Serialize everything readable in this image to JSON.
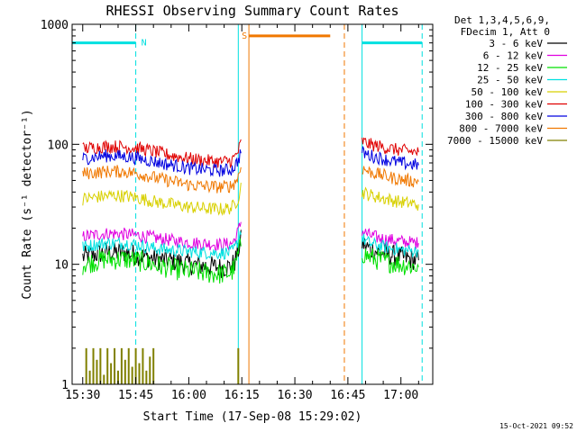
{
  "chart_data": {
    "type": "line",
    "title": "RHESSI Observing Summary Count Rates",
    "xlabel": "Start Time (17-Sep-08 15:29:02)",
    "ylabel": "Count Rate (s⁻¹ detector⁻¹)",
    "y_scale": "log",
    "ylim": [
      1,
      1000
    ],
    "xlim": [
      "15:27",
      "17:09"
    ],
    "x_ticks": [
      "15:30",
      "15:45",
      "16:00",
      "16:15",
      "16:30",
      "16:45",
      "17:00"
    ],
    "y_ticks": [
      "1",
      "10",
      "100",
      "1000"
    ],
    "legend_header": [
      "Det 1,3,4,5,6,9,",
      "FDecim 1, Att 0"
    ],
    "legend_placement": "right",
    "timestamp": "15-Oct-2021 09:52",
    "x_unit": "HH:MM on 17-Sep-08",
    "data_gap": [
      "16:15",
      "16:49"
    ],
    "series": [
      {
        "name": "3 - 6 keV",
        "color": "#000000",
        "x": [
          "15:30",
          "15:33",
          "15:36",
          "15:39",
          "15:42",
          "15:45",
          "15:48",
          "15:51",
          "15:54",
          "15:57",
          "16:00",
          "16:03",
          "16:06",
          "16:09",
          "16:12",
          "16:13",
          "16:14",
          "16:15",
          "16:49",
          "16:51",
          "16:54",
          "16:57",
          "17:00",
          "17:03",
          "17:05"
        ],
        "y": [
          11.5,
          12,
          12.5,
          12.5,
          12.5,
          12,
          11.5,
          11,
          10.8,
          10.5,
          10,
          9.8,
          9.6,
          9.4,
          9.6,
          10.5,
          13,
          17,
          15,
          13.5,
          12.5,
          12,
          11.5,
          11,
          10.8
        ]
      },
      {
        "name": "6 - 12 keV",
        "color": "#e000e0",
        "x": [
          "15:30",
          "15:33",
          "15:36",
          "15:39",
          "15:42",
          "15:45",
          "15:48",
          "15:51",
          "15:54",
          "15:57",
          "16:00",
          "16:03",
          "16:06",
          "16:09",
          "16:12",
          "16:13",
          "16:14",
          "16:15",
          "16:49",
          "16:51",
          "16:54",
          "16:57",
          "17:00",
          "17:03",
          "17:05"
        ],
        "y": [
          17,
          17.5,
          18,
          18,
          17.8,
          17.5,
          17,
          16.5,
          16,
          15.5,
          15.2,
          15,
          14.8,
          14.6,
          14.8,
          16,
          19,
          24,
          19,
          17.5,
          16.5,
          16,
          15.5,
          15.2,
          15
        ]
      },
      {
        "name": "12 - 25 keV",
        "color": "#00e000",
        "x": [
          "15:30",
          "15:33",
          "15:36",
          "15:39",
          "15:42",
          "15:45",
          "15:48",
          "15:51",
          "15:54",
          "15:57",
          "16:00",
          "16:03",
          "16:06",
          "16:09",
          "16:12",
          "16:13",
          "16:14",
          "16:15",
          "16:49",
          "16:51",
          "16:54",
          "16:57",
          "17:00",
          "17:03",
          "17:05"
        ],
        "y": [
          10,
          10.5,
          11,
          11,
          11,
          10.8,
          10.3,
          9.8,
          9.4,
          9,
          8.8,
          8.6,
          8.4,
          8.3,
          8.5,
          9.5,
          12,
          16,
          12.5,
          11.5,
          10.8,
          10.4,
          10,
          9.7,
          9.5
        ]
      },
      {
        "name": "25 - 50 keV",
        "color": "#00e0e0",
        "x": [
          "15:30",
          "15:33",
          "15:36",
          "15:39",
          "15:42",
          "15:45",
          "15:48",
          "15:51",
          "15:54",
          "15:57",
          "16:00",
          "16:03",
          "16:06",
          "16:09",
          "16:12",
          "16:13",
          "16:14",
          "16:15",
          "16:49",
          "16:51",
          "16:54",
          "16:57",
          "17:00",
          "17:03",
          "17:05"
        ],
        "y": [
          14,
          14.5,
          15,
          15,
          15,
          14.6,
          14,
          13.5,
          13.2,
          13,
          12.8,
          12.6,
          12.5,
          12.4,
          12.6,
          13.5,
          16,
          21,
          16.5,
          15,
          14.2,
          13.6,
          13.2,
          13,
          12.8
        ]
      },
      {
        "name": "50 - 100 keV",
        "color": "#d8d000",
        "x": [
          "15:30",
          "15:33",
          "15:36",
          "15:39",
          "15:42",
          "15:45",
          "15:48",
          "15:51",
          "15:54",
          "15:57",
          "16:00",
          "16:03",
          "16:06",
          "16:09",
          "16:12",
          "16:13",
          "16:14",
          "16:15",
          "16:49",
          "16:51",
          "16:54",
          "16:57",
          "17:00",
          "17:03",
          "17:05"
        ],
        "y": [
          35,
          36,
          37,
          37.5,
          37,
          36,
          34.5,
          33,
          32,
          31,
          30,
          29.5,
          29,
          28.8,
          29.5,
          31.5,
          36,
          48,
          40,
          38,
          36,
          34.5,
          33,
          32,
          31.5
        ]
      },
      {
        "name": "100 - 300 keV",
        "color": "#e00000",
        "x": [
          "15:30",
          "15:33",
          "15:36",
          "15:39",
          "15:42",
          "15:45",
          "15:48",
          "15:51",
          "15:54",
          "15:57",
          "16:00",
          "16:03",
          "16:06",
          "16:09",
          "16:12",
          "16:13",
          "16:14",
          "16:15",
          "16:49",
          "16:51",
          "16:54",
          "16:57",
          "17:00",
          "17:03",
          "17:05"
        ],
        "y": [
          92,
          94,
          96,
          96,
          95,
          93,
          90,
          86,
          82,
          79,
          76,
          74,
          72.5,
          71.5,
          73,
          78,
          88,
          108,
          106,
          100,
          96,
          92,
          89,
          87,
          86
        ]
      },
      {
        "name": "300 - 800 keV",
        "color": "#0000e0",
        "x": [
          "15:30",
          "15:33",
          "15:36",
          "15:39",
          "15:42",
          "15:45",
          "15:48",
          "15:51",
          "15:54",
          "15:57",
          "16:00",
          "16:03",
          "16:06",
          "16:09",
          "16:12",
          "16:13",
          "16:14",
          "16:15",
          "16:49",
          "16:51",
          "16:54",
          "16:57",
          "17:00",
          "17:03",
          "17:05"
        ],
        "y": [
          76,
          78,
          80,
          80,
          79,
          77,
          74,
          71,
          68,
          66,
          63,
          62,
          61,
          60.5,
          61.5,
          66,
          74,
          92,
          86,
          81,
          77,
          73,
          70,
          68,
          67
        ]
      },
      {
        "name": "800 - 7000 keV",
        "color": "#f07800",
        "x": [
          "15:30",
          "15:33",
          "15:36",
          "15:39",
          "15:42",
          "15:45",
          "15:48",
          "15:51",
          "15:54",
          "15:57",
          "16:00",
          "16:03",
          "16:06",
          "16:09",
          "16:12",
          "16:13",
          "16:14",
          "16:15",
          "16:49",
          "16:51",
          "16:54",
          "16:57",
          "17:00",
          "17:03",
          "17:05"
        ],
        "y": [
          57,
          58,
          59,
          59.5,
          59,
          57.5,
          55,
          52,
          50,
          48,
          46,
          45,
          44.5,
          44,
          45,
          48,
          54,
          68,
          63,
          59,
          56,
          53,
          51,
          49.5,
          49
        ]
      },
      {
        "name": "7000 - 15000 keV",
        "color": "#808000",
        "x": [
          "15:31",
          "15:32",
          "15:33",
          "15:34",
          "15:35",
          "15:36",
          "15:37",
          "15:38",
          "15:39",
          "15:40",
          "15:41",
          "15:42",
          "15:43",
          "15:44",
          "15:45",
          "15:46",
          "15:47",
          "15:48",
          "15:49",
          "15:50",
          "16:14"
        ],
        "y": [
          2,
          1.3,
          2,
          1.6,
          2,
          1.2,
          2,
          1.5,
          2,
          1.3,
          2,
          1.6,
          2,
          1.4,
          2,
          1.5,
          2,
          1.3,
          1.7,
          2,
          2
        ]
      }
    ],
    "annotations": [
      {
        "label": "N",
        "color": "#00e0e0",
        "bar": [
          "15:27",
          "15:45"
        ],
        "y": 700
      },
      {
        "label": "",
        "color": "#00e0e0",
        "bar": [
          "16:49",
          "17:06"
        ],
        "y": 700
      },
      {
        "label": "S",
        "color": "#f07800",
        "bar": [
          "16:17",
          "16:40"
        ],
        "y": 800
      }
    ],
    "markers": [
      {
        "time": "15:45",
        "color": "#00e0e0",
        "style": "dashed"
      },
      {
        "time": "16:14",
        "color": "#00e0e0",
        "style": "solid"
      },
      {
        "time": "16:17",
        "color": "#f07800",
        "style": "solid"
      },
      {
        "time": "16:44",
        "color": "#f07800",
        "style": "dashed"
      },
      {
        "time": "16:49",
        "color": "#00e0e0",
        "style": "solid"
      },
      {
        "time": "17:06",
        "color": "#00e0e0",
        "style": "dashed"
      }
    ]
  }
}
